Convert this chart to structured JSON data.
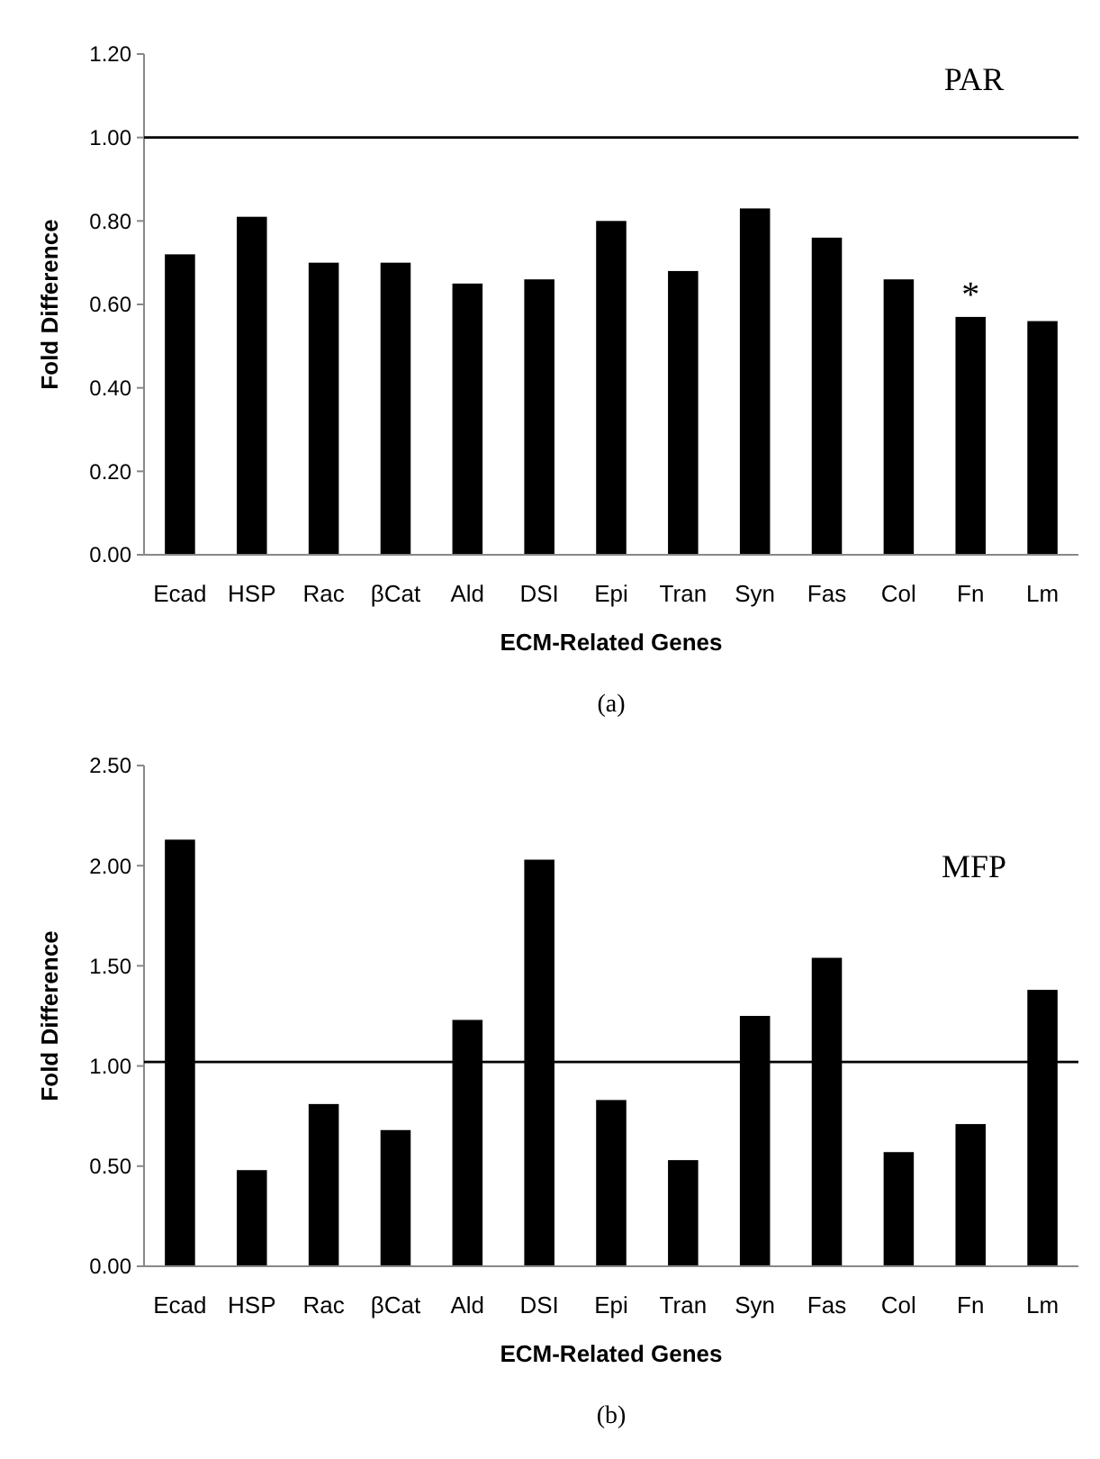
{
  "chart_data": [
    {
      "type": "bar",
      "xlabel": "ECM-Related Genes",
      "ylabel": "Fold Difference",
      "categories": [
        "Ecad",
        "HSP",
        "Rac",
        "βCat",
        "Ald",
        "DSI",
        "Epi",
        "Tran",
        "Syn",
        "Fas",
        "Col",
        "Fn",
        "Lm"
      ],
      "values": [
        0.72,
        0.81,
        0.7,
        0.7,
        0.65,
        0.66,
        0.8,
        0.68,
        0.83,
        0.76,
        0.66,
        0.57,
        0.56
      ],
      "color": "#000000",
      "ylim": [
        0,
        1.2
      ],
      "yticks": [
        {
          "value": 0,
          "label": "0.00"
        },
        {
          "value": 0.2,
          "label": "0.20"
        },
        {
          "value": 0.4,
          "label": "0.40"
        },
        {
          "value": 0.6,
          "label": "0.60"
        },
        {
          "value": 0.8,
          "label": "0.80"
        },
        {
          "value": 1,
          "label": "1.00"
        },
        {
          "value": 1.2,
          "label": "1.20"
        }
      ],
      "grid": false,
      "ref_lines": [
        {
          "axis": "y",
          "value": 1,
          "color": "#000000"
        }
      ],
      "annotations": [
        "PAR",
        {
          "text": "*",
          "x": "Fn",
          "y": 0.57
        },
        "(a)"
      ]
    },
    {
      "type": "bar",
      "xlabel": "ECM-Related Genes",
      "ylabel": "Fold Difference",
      "categories": [
        "Ecad",
        "HSP",
        "Rac",
        "βCat",
        "Ald",
        "DSI",
        "Epi",
        "Tran",
        "Syn",
        "Fas",
        "Col",
        "Fn",
        "Lm"
      ],
      "values": [
        2.13,
        0.48,
        0.81,
        0.68,
        1.23,
        2.03,
        0.83,
        0.53,
        1.25,
        1.54,
        0.57,
        0.71,
        1.38
      ],
      "color": "#000000",
      "ylim": [
        0,
        2.5
      ],
      "yticks": [
        {
          "value": 0,
          "label": "0.00"
        },
        {
          "value": 0.5,
          "label": "0.50"
        },
        {
          "value": 1,
          "label": "1.00"
        },
        {
          "value": 1.5,
          "label": "1.50"
        },
        {
          "value": 2,
          "label": "2.00"
        },
        {
          "value": 2.5,
          "label": "2.50"
        }
      ],
      "grid": false,
      "ref_lines": [
        {
          "axis": "y",
          "value": 1.02,
          "color": "#000000"
        }
      ],
      "annotations": [
        "MFP",
        "(b)"
      ]
    }
  ]
}
